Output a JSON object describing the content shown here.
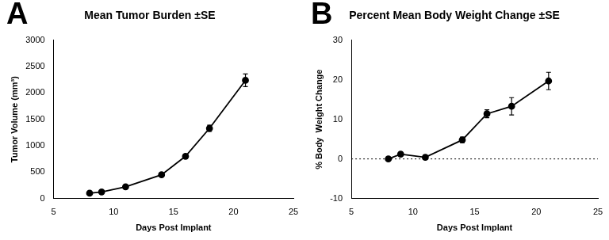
{
  "chart_data": [
    {
      "type": "line",
      "panel": "A",
      "title": "Mean Tumor Burden ±SE",
      "x_label": "Days Post Implant",
      "y_label": "Tumor Volume (mm³)",
      "x": [
        8,
        9,
        11,
        14,
        16,
        18,
        21
      ],
      "values": [
        100,
        125,
        220,
        450,
        800,
        1330,
        2240
      ],
      "errors": [
        5,
        8,
        15,
        20,
        40,
        60,
        120
      ],
      "color": "#000000",
      "marker": "circle",
      "grid": false,
      "xlim": [
        5,
        25
      ],
      "xticks": [
        5,
        10,
        15,
        20,
        25
      ],
      "ylim": [
        0,
        3000
      ],
      "yticks": [
        0,
        500,
        1000,
        1500,
        2000,
        2500,
        3000
      ]
    },
    {
      "type": "line",
      "panel": "B",
      "title": "Percent Mean Body Weight Change ±SE",
      "x_label": "Days Post Implant",
      "y_label": "% Body  Weight Change",
      "x": [
        8,
        9,
        11,
        14,
        16,
        18,
        21
      ],
      "values": [
        0,
        1.2,
        0.4,
        4.8,
        11.4,
        13.3,
        19.7
      ],
      "errors": [
        0.2,
        0.3,
        0.5,
        0.7,
        1.0,
        2.2,
        2.2
      ],
      "reference_line": 0,
      "color": "#000000",
      "marker": "circle",
      "grid": false,
      "xlim": [
        5,
        25
      ],
      "xticks": [
        5,
        10,
        15,
        20,
        25
      ],
      "ylim": [
        -10,
        30
      ],
      "yticks": [
        -10,
        0,
        10,
        20,
        30
      ]
    }
  ]
}
